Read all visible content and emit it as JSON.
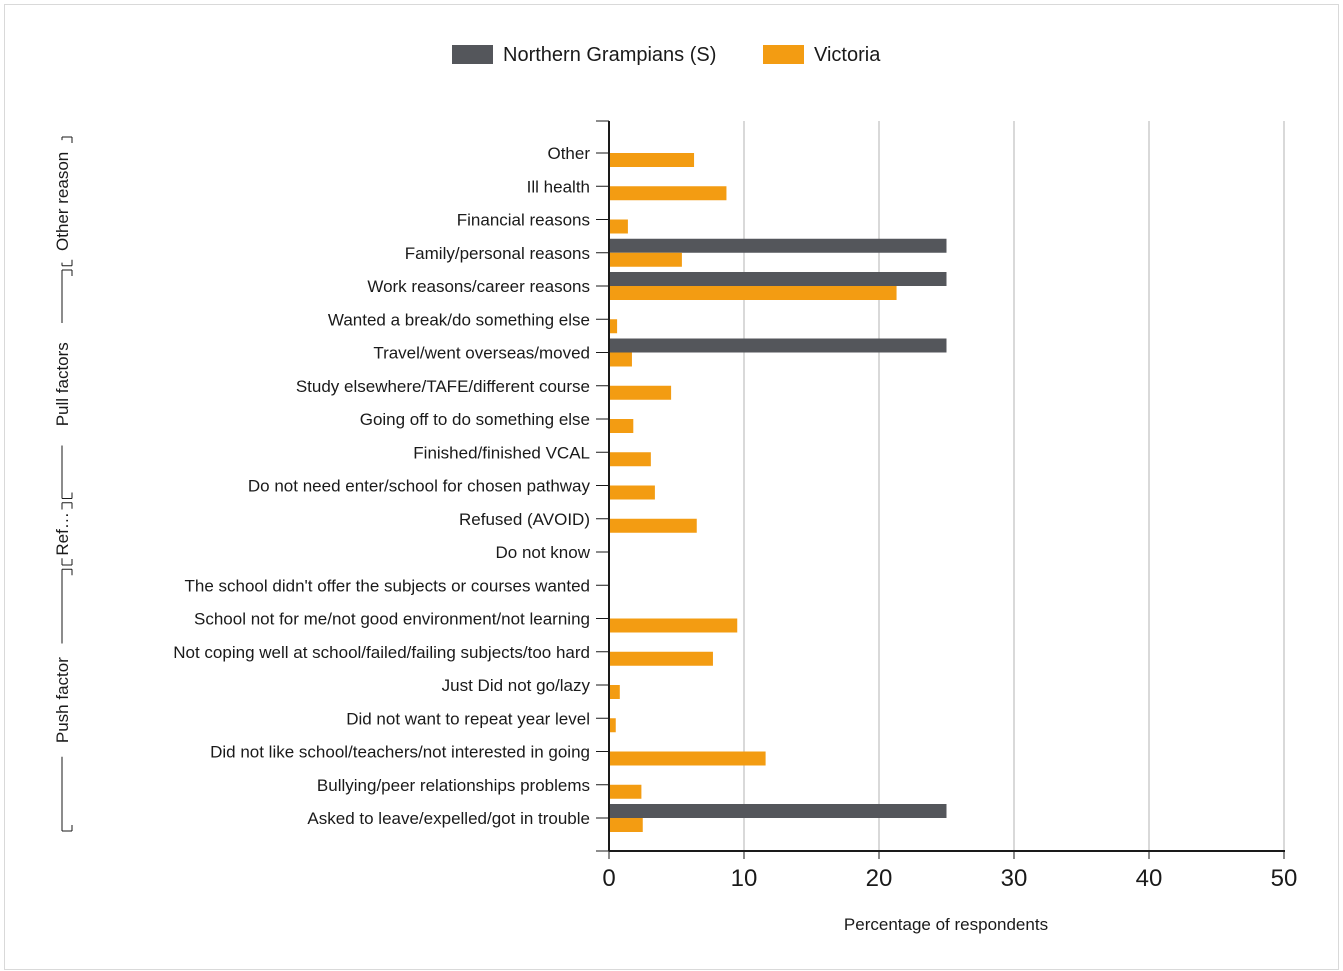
{
  "chart_data": {
    "type": "bar",
    "orientation": "horizontal",
    "xlabel": "Percentage of respondents",
    "xlim": [
      0,
      50
    ],
    "xticks": [
      0,
      10,
      20,
      30,
      40,
      50
    ],
    "grid": "vertical",
    "legend_position": "top",
    "legend": [
      "Northern Grampians (S)",
      "Victoria"
    ],
    "groups": [
      {
        "label": "Other reason",
        "range": [
          0,
          3
        ]
      },
      {
        "label": "Pull factors",
        "range": [
          4,
          10
        ]
      },
      {
        "label": "Ref…",
        "range": [
          11,
          12
        ]
      },
      {
        "label": "Push factor",
        "range": [
          13,
          20
        ]
      }
    ],
    "categories": [
      "Other",
      "Ill health",
      "Financial reasons",
      "Family/personal reasons",
      "Work reasons/career reasons",
      "Wanted a break/do something else",
      "Travel/went overseas/moved",
      "Study elsewhere/TAFE/different course",
      "Going off to do something else",
      "Finished/finished VCAL",
      "Do not need enter/school for chosen pathway",
      "Refused (AVOID)",
      "Do not know",
      "The school didn't offer the subjects or courses wanted",
      "School not for me/not good environment/not learning",
      "Not coping well at school/failed/failing subjects/too hard",
      "Just Did not go/lazy",
      "Did not want to repeat year level",
      "Did not like school/teachers/not interested in going",
      "Bullying/peer relationships problems",
      "Asked to leave/expelled/got in trouble"
    ],
    "series": [
      {
        "name": "Northern Grampians (S)",
        "color": "#54565b",
        "values": [
          0,
          0,
          0,
          25,
          25,
          0,
          25,
          0,
          0,
          0,
          0,
          0,
          0,
          0,
          0,
          0,
          0,
          0,
          0,
          0,
          25
        ]
      },
      {
        "name": "Victoria",
        "color": "#f39c12",
        "values": [
          6.3,
          8.7,
          1.4,
          5.4,
          21.3,
          0.6,
          1.7,
          4.6,
          1.8,
          3.1,
          3.4,
          6.5,
          0,
          0,
          9.5,
          7.7,
          0.8,
          0.5,
          11.6,
          2.4,
          2.5
        ]
      }
    ]
  }
}
